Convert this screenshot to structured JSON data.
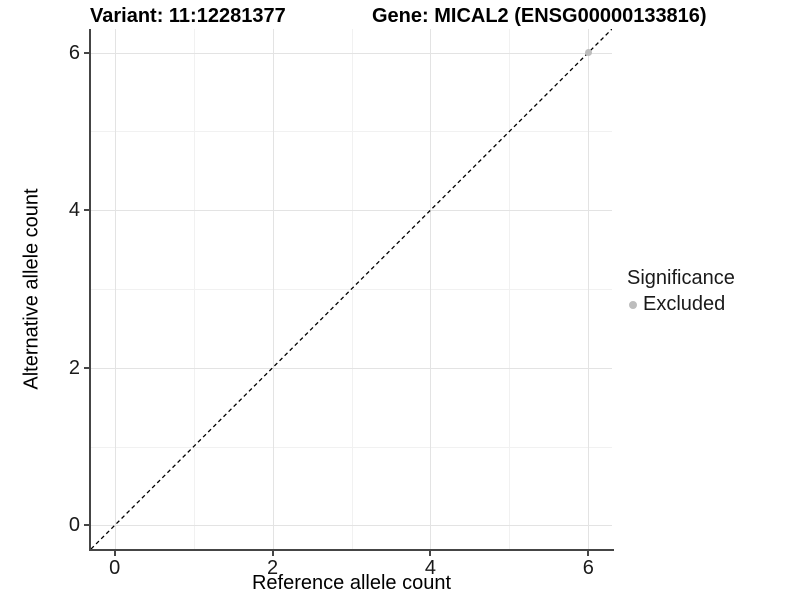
{
  "chart_data": {
    "type": "scatter",
    "title_left": "Variant: 11:12281377",
    "title_right": "Gene: MICAL2 (ENSG00000133816)",
    "xlabel": "Reference allele count",
    "ylabel": "Alternative allele count",
    "xlim": [
      -0.3,
      6.3
    ],
    "ylim": [
      -0.3,
      6.3
    ],
    "x_ticks": [
      0,
      2,
      4,
      6
    ],
    "y_ticks": [
      0,
      2,
      4,
      6
    ],
    "grid": {
      "visible": true,
      "x_minor": [
        1,
        3,
        5
      ],
      "y_minor": [
        1,
        3,
        5
      ]
    },
    "reference_line": {
      "style": "dashed",
      "color": "#000000",
      "x1": -0.3,
      "y1": -0.3,
      "x2": 6.3,
      "y2": 6.3
    },
    "points": [
      {
        "x": 6,
        "y": 6,
        "significance": "Excluded",
        "color": "#bdbdbd"
      }
    ],
    "legend": {
      "title": "Significance",
      "position": "right",
      "items": [
        {
          "label": "Excluded",
          "marker": "circle",
          "color": "#bdbdbd"
        }
      ]
    },
    "colors": {
      "background": "#ffffff",
      "grid_major": "#e3e3e3",
      "grid_minor": "#f1f1f1",
      "axis_line": "#454545",
      "tick_mark": "#454545",
      "text": "#000000"
    }
  }
}
